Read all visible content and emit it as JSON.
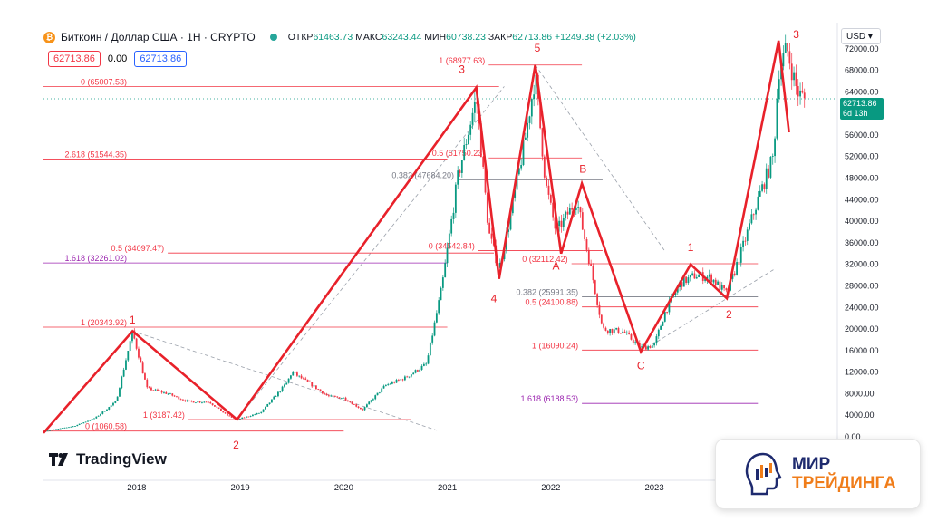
{
  "header": {
    "coin_glyph": "₿",
    "symbol": "Биткоин / Доллар США · 1Н · CRYPTO",
    "ohlc": [
      {
        "label": "ОТКР",
        "value": "61463.73"
      },
      {
        "label": "МАКС",
        "value": "63243.44"
      },
      {
        "label": "МИН",
        "value": "60738.23"
      },
      {
        "label": "ЗАКР",
        "value": "62713.86"
      }
    ],
    "change": "+1249.38 (+2.03%)",
    "bid": "62713.86",
    "spread": "0.00",
    "ask": "62713.86"
  },
  "currency": "USD",
  "price_tag": {
    "price": "62713.86",
    "countdown": "6d 13h"
  },
  "logo_text": "TradingView",
  "brand": {
    "line1": "МИР",
    "line2": "ТРЕЙДИНГА"
  },
  "colors": {
    "up": "#089981",
    "down": "#f23645",
    "wave": "#e8212a",
    "fib": "#f23645",
    "fib_purple": "#9c27b0",
    "fib_gray": "#787b86"
  },
  "chart_data": {
    "type": "candlestick",
    "title": "Биткоин / Доллар США · 1Н · CRYPTO",
    "x_ticks": [
      "2018",
      "2019",
      "2020",
      "2021",
      "2022",
      "2023"
    ],
    "y_ticks": [
      "4000.00",
      "8000.00",
      "12000.00",
      "16000.00",
      "20000.00",
      "24000.00",
      "28000.00",
      "32000.00",
      "36000.00",
      "40000.00",
      "44000.00",
      "48000.00",
      "52000.00",
      "56000.00",
      "60000.00",
      "64000.00",
      "68000.00",
      "72000.00"
    ],
    "y_min_tick": "0.00",
    "ylim": [
      0,
      76000
    ],
    "xlim": [
      2017.1,
      2024.75
    ],
    "price_path": [
      [
        2017.1,
        1000
      ],
      [
        2017.4,
        2000
      ],
      [
        2017.6,
        3500
      ],
      [
        2017.8,
        6500
      ],
      [
        2017.96,
        19500
      ],
      [
        2018.1,
        9000
      ],
      [
        2018.3,
        8000
      ],
      [
        2018.5,
        6500
      ],
      [
        2018.7,
        6500
      ],
      [
        2018.87,
        4000
      ],
      [
        2018.97,
        3200
      ],
      [
        2019.2,
        4500
      ],
      [
        2019.45,
        10000
      ],
      [
        2019.5,
        12000
      ],
      [
        2019.7,
        9500
      ],
      [
        2019.85,
        7500
      ],
      [
        2020.0,
        7200
      ],
      [
        2020.18,
        5000
      ],
      [
        2020.4,
        9500
      ],
      [
        2020.6,
        11000
      ],
      [
        2020.8,
        13500
      ],
      [
        2020.95,
        28000
      ],
      [
        2021.1,
        48000
      ],
      [
        2021.28,
        63000
      ],
      [
        2021.4,
        38000
      ],
      [
        2021.5,
        31000
      ],
      [
        2021.6,
        40000
      ],
      [
        2021.75,
        55000
      ],
      [
        2021.85,
        67000
      ],
      [
        2021.95,
        47000
      ],
      [
        2022.05,
        38000
      ],
      [
        2022.25,
        44000
      ],
      [
        2022.4,
        30000
      ],
      [
        2022.5,
        20000
      ],
      [
        2022.7,
        19500
      ],
      [
        2022.87,
        16500
      ],
      [
        2023.0,
        17000
      ],
      [
        2023.1,
        23000
      ],
      [
        2023.25,
        28500
      ],
      [
        2023.4,
        30000
      ],
      [
        2023.55,
        29500
      ],
      [
        2023.7,
        26500
      ],
      [
        2023.85,
        35000
      ],
      [
        2024.0,
        44000
      ],
      [
        2024.15,
        52000
      ],
      [
        2024.2,
        68000
      ],
      [
        2024.28,
        72000
      ],
      [
        2024.38,
        64000
      ],
      [
        2024.45,
        62700
      ]
    ],
    "wave_path": [
      [
        2017.1,
        700
      ],
      [
        2017.96,
        19600
      ],
      [
        2018.97,
        3200
      ],
      [
        2021.28,
        64800
      ],
      [
        2021.5,
        29300
      ],
      [
        2021.85,
        69000
      ],
      [
        2022.1,
        34000
      ],
      [
        2022.3,
        47000
      ],
      [
        2022.87,
        15800
      ],
      [
        2023.35,
        32000
      ],
      [
        2023.7,
        25700
      ],
      [
        2024.2,
        73500
      ],
      [
        2024.3,
        56500
      ]
    ],
    "wave_labels": [
      {
        "text": "1",
        "x": 2017.96,
        "y": 21000
      },
      {
        "text": "2",
        "x": 2018.96,
        "y": 0
      },
      {
        "text": "3",
        "x": 2021.14,
        "y": 67500
      },
      {
        "text": "4",
        "x": 2021.45,
        "y": 25000
      },
      {
        "text": "5",
        "x": 2021.87,
        "y": 71500
      },
      {
        "text": "A",
        "x": 2022.05,
        "y": 31000
      },
      {
        "text": "B",
        "x": 2022.31,
        "y": 49000
      },
      {
        "text": "C",
        "x": 2022.87,
        "y": 12500
      },
      {
        "text": "1",
        "x": 2023.35,
        "y": 34500
      },
      {
        "text": "2",
        "x": 2023.72,
        "y": 22000
      },
      {
        "text": "3",
        "x": 2024.37,
        "y": 74000
      }
    ],
    "fib_levels": [
      {
        "label": "0 (65007.53)",
        "y": 65007.53,
        "x0": 2017.1,
        "x1": 2021.5,
        "color": "fib"
      },
      {
        "label": "2.618 (51544.35)",
        "y": 51544.35,
        "x0": 2017.1,
        "x1": 2021.0,
        "color": "fib"
      },
      {
        "label": "0.5 (34097.47)",
        "y": 34097.47,
        "x0": 2018.3,
        "x1": 2021.45,
        "color": "fib"
      },
      {
        "label": "1.618 (32261.02)",
        "y": 32261.02,
        "x0": 2017.1,
        "x1": 2021.0,
        "color": "fib_purple"
      },
      {
        "label": "1 (20343.92)",
        "y": 20343.92,
        "x0": 2017.1,
        "x1": 2021.0,
        "color": "fib"
      },
      {
        "label": "1 (3187.42)",
        "y": 3187.42,
        "x0": 2018.5,
        "x1": 2020.65,
        "color": "fib"
      },
      {
        "label": "0 (1060.58)",
        "y": 1060.58,
        "x0": 2017.1,
        "x1": 2020.0,
        "color": "fib"
      },
      {
        "label": "1 (68977.63)",
        "y": 68977.63,
        "x0": 2021.4,
        "x1": 2022.3,
        "color": "fib"
      },
      {
        "label": "0.5 (51750.23)",
        "y": 51750.23,
        "x0": 2021.4,
        "x1": 2022.3,
        "color": "fib"
      },
      {
        "label": "0.382 (47684.20)",
        "y": 47684.2,
        "x0": 2021.1,
        "x1": 2022.5,
        "color": "fib_gray"
      },
      {
        "label": "0 (34542.84)",
        "y": 34542.84,
        "x0": 2021.3,
        "x1": 2022.5,
        "color": "fib"
      },
      {
        "label": "0 (32112.42)",
        "y": 32112.42,
        "x0": 2022.2,
        "x1": 2024.0,
        "color": "fib"
      },
      {
        "label": "0.382 (25991.35)",
        "y": 25991.35,
        "x0": 2022.3,
        "x1": 2024.0,
        "color": "fib_gray"
      },
      {
        "label": "0.5 (24100.88)",
        "y": 24100.88,
        "x0": 2022.3,
        "x1": 2024.0,
        "color": "fib"
      },
      {
        "label": "1 (16090.24)",
        "y": 16090.24,
        "x0": 2022.3,
        "x1": 2024.0,
        "color": "fib"
      },
      {
        "label": "1.618 (6188.53)",
        "y": 6188.53,
        "x0": 2022.3,
        "x1": 2024.0,
        "color": "fib_purple"
      }
    ],
    "trend_dashed": [
      [
        [
          2017.96,
          19600
        ],
        [
          2020.9,
          1200
        ]
      ],
      [
        [
          2018.97,
          3200
        ],
        [
          2021.55,
          65000
        ]
      ],
      [
        [
          2021.85,
          69000
        ],
        [
          2023.1,
          34500
        ]
      ],
      [
        [
          2022.87,
          15800
        ],
        [
          2024.15,
          31000
        ]
      ]
    ]
  }
}
